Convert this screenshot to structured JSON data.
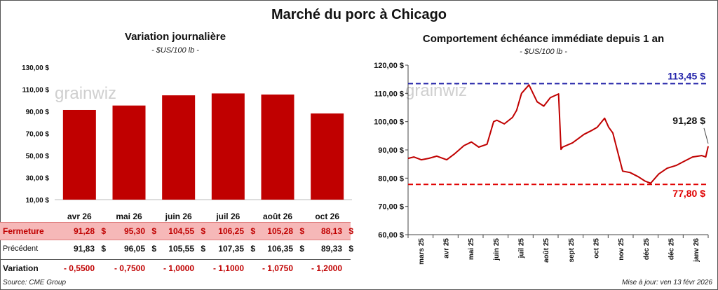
{
  "header": {
    "title": "Marché du porc à Chicago"
  },
  "left_chart": {
    "title": "Variation journalière",
    "subtitle": "- $US/100 lb -"
  },
  "right_chart": {
    "title": "Comportement  échéance immédiate depuis 1 an",
    "subtitle": "- $US/100 lb -"
  },
  "watermark": "grainwiz",
  "table": {
    "currency": "$",
    "close_label": "Fermeture",
    "prev_label": "Précédent",
    "var_label": "Variation",
    "close": [
      "91,28",
      "95,30",
      "104,55",
      "106,25",
      "105,28",
      "88,13"
    ],
    "prev": [
      "91,83",
      "96,05",
      "105,55",
      "107,35",
      "106,35",
      "89,33"
    ],
    "var": [
      "- 0,5500",
      "- 0,7500",
      "- 1,0000",
      "- 1,1000",
      "- 1,0750",
      "- 1,2000"
    ]
  },
  "footer": {
    "source": "Source: CME Group",
    "update": "Mise à jour: ven 13 févr 2026"
  },
  "colors": {
    "bar": "#c00000",
    "line": "#c00000",
    "high": "#1f1fa8",
    "low": "#e00000"
  },
  "chart_data": [
    {
      "type": "bar",
      "title": "Variation journalière",
      "subtitle": "- $US/100 lb -",
      "categories": [
        "avr 26",
        "mai 26",
        "juin 26",
        "juil 26",
        "août 26",
        "oct 26"
      ],
      "values": [
        91.28,
        95.3,
        104.55,
        106.25,
        105.28,
        88.13
      ],
      "ylim": [
        10,
        130
      ],
      "yticks": [
        10,
        30,
        50,
        70,
        90,
        110,
        130
      ],
      "ytick_labels": [
        "10,00 $",
        "30,00 $",
        "50,00 $",
        "70,00 $",
        "90,00 $",
        "110,00 $",
        "130,00 $"
      ],
      "grid": false
    },
    {
      "type": "line",
      "title": "Comportement  échéance immédiate depuis 1 an",
      "subtitle": "- $US/100 lb -",
      "ylim": [
        60,
        120
      ],
      "yticks": [
        60,
        70,
        80,
        90,
        100,
        110,
        120
      ],
      "ytick_labels": [
        "60,00 $",
        "70,00 $",
        "80,00 $",
        "90,00 $",
        "100,00 $",
        "110,00 $",
        "120,00 $"
      ],
      "xtick_labels": [
        "mars 25",
        "avr 25",
        "mai 25",
        "juin 25",
        "juil 25",
        "août 25",
        "sept 25",
        "oct 25",
        "nov 25",
        "déc 25",
        "déc 25",
        "janv 26"
      ],
      "x_range": [
        "2025-02-13",
        "2026-02-13"
      ],
      "x": [
        "2025-02-13",
        "2025-02-20",
        "2025-03-01",
        "2025-03-10",
        "2025-03-20",
        "2025-04-01",
        "2025-04-10",
        "2025-04-22",
        "2025-05-01",
        "2025-05-10",
        "2025-05-20",
        "2025-05-28",
        "2025-06-01",
        "2025-06-10",
        "2025-06-20",
        "2025-06-25",
        "2025-07-01",
        "2025-07-10",
        "2025-07-20",
        "2025-07-28",
        "2025-08-05",
        "2025-08-15",
        "2025-08-18",
        "2025-08-20",
        "2025-09-01",
        "2025-09-15",
        "2025-09-25",
        "2025-10-01",
        "2025-10-10",
        "2025-10-15",
        "2025-10-20",
        "2025-11-01",
        "2025-11-10",
        "2025-11-20",
        "2025-11-28",
        "2025-12-05",
        "2025-12-15",
        "2025-12-25",
        "2026-01-05",
        "2026-01-15",
        "2026-01-25",
        "2026-02-05",
        "2026-02-10",
        "2026-02-13"
      ],
      "values": [
        87.0,
        87.5,
        86.5,
        87.0,
        87.8,
        86.5,
        88.5,
        91.5,
        92.8,
        91.0,
        92.0,
        100.0,
        100.5,
        99.2,
        101.5,
        104.0,
        110.0,
        113.0,
        107.0,
        105.5,
        108.5,
        109.8,
        90.2,
        91.0,
        92.5,
        95.5,
        97.0,
        98.0,
        101.2,
        98.0,
        96.0,
        82.5,
        82.0,
        80.5,
        79.0,
        78.2,
        81.5,
        83.5,
        84.5,
        86.0,
        87.5,
        88.0,
        87.5,
        91.28
      ],
      "reference_lines": [
        {
          "label": "113,45 $",
          "value": 113.45,
          "style": "dashed"
        },
        {
          "label": "77,80 $",
          "value": 77.8,
          "style": "dashed"
        }
      ],
      "last_label": "91,28 $",
      "grid": false
    }
  ]
}
